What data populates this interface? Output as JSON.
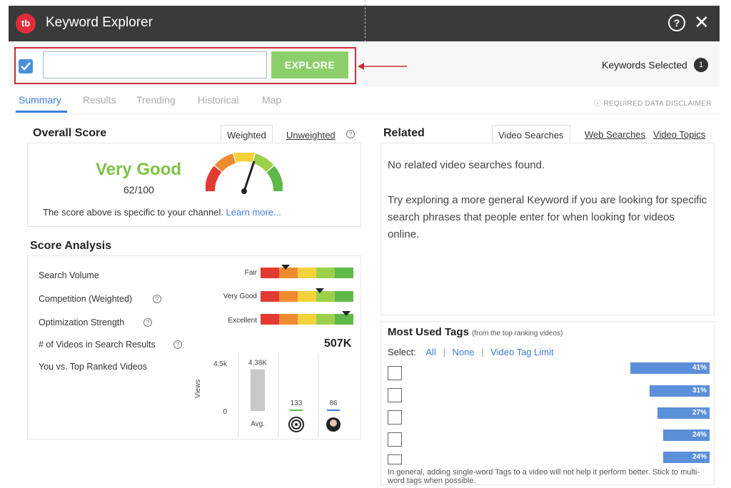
{
  "app": {
    "logo_text": "tb",
    "title": "Keyword Explorer",
    "help_glyph": "?",
    "close_glyph": "✕"
  },
  "search": {
    "input_value": "",
    "explore_label": "EXPLORE",
    "keywords_selected_label": "Keywords Selected",
    "keywords_selected_count": "1"
  },
  "tabs": [
    {
      "label": "Summary",
      "active": true
    },
    {
      "label": "Results",
      "active": false
    },
    {
      "label": "Trending",
      "active": false
    },
    {
      "label": "Historical",
      "active": false
    },
    {
      "label": "Map",
      "active": false
    }
  ],
  "disclaimer": "ⓘ REQUIRED DATA DISCLAIMER",
  "overall_score": {
    "title": "Overall Score",
    "tab_weighted": "Weighted",
    "tab_unweighted": "Unweighted",
    "rating": "Very Good",
    "score_text": "62/100",
    "score_value": 62,
    "note": "The score above is specific to your channel.",
    "learn_more": "Learn more..."
  },
  "score_analysis": {
    "title": "Score Analysis",
    "rows": [
      {
        "label": "Search Volume",
        "rating": "Fair",
        "marker_fraction": 0.27,
        "has_help": false
      },
      {
        "label": "Competition (Weighted)",
        "rating": "Very Good",
        "marker_fraction": 0.64,
        "has_help": true
      },
      {
        "label": "Optimization Strength",
        "rating": "Excellent",
        "marker_fraction": 0.92,
        "has_help": true
      }
    ],
    "videos_label": "# of Videos in Search Results",
    "videos_value": "507K",
    "you_vs_label": "You vs. Top Ranked Videos",
    "scale_colors": [
      "#e23a33",
      "#f08a30",
      "#f4d23c",
      "#9cd04b",
      "#5fb847"
    ]
  },
  "views_chart": {
    "y_label": "Views",
    "y_max_label": "4.5k",
    "y_min_label": "0",
    "y_max": 4500,
    "bars": [
      {
        "label": "4.38K",
        "value": 4380,
        "x_label": "Avg.",
        "color": "#c8c8c8"
      },
      {
        "label": "133",
        "value": 133,
        "x_label": "",
        "color": "#5fb847",
        "icon": "target-icon"
      },
      {
        "label": "86",
        "value": 86,
        "x_label": "",
        "color": "#3b7dd8",
        "icon": "avatar-icon"
      }
    ]
  },
  "related": {
    "title": "Related",
    "tab_video_searches": "Video Searches",
    "tab_web_searches": "Web Searches",
    "tab_video_topics": "Video Topics",
    "empty_message": "No related video searches found.",
    "hint": "Try exploring a more general Keyword if you are looking for specific search phrases that people enter for when looking for videos online."
  },
  "tags": {
    "title": "Most Used Tags",
    "subtitle": "(from the top ranking videos)",
    "select_label": "Select:",
    "select_all": "All",
    "select_none": "None",
    "select_limit": "Video Tag Limit",
    "rows": [
      {
        "percent_label": "41%",
        "value": 41
      },
      {
        "percent_label": "31%",
        "value": 31
      },
      {
        "percent_label": "27%",
        "value": 27
      },
      {
        "percent_label": "24%",
        "value": 24
      },
      {
        "percent_label": "24%",
        "value": 24
      }
    ],
    "footer": "In general, adding single-word Tags to a video will not help it perform better. Stick to multi-word tags when possible."
  }
}
